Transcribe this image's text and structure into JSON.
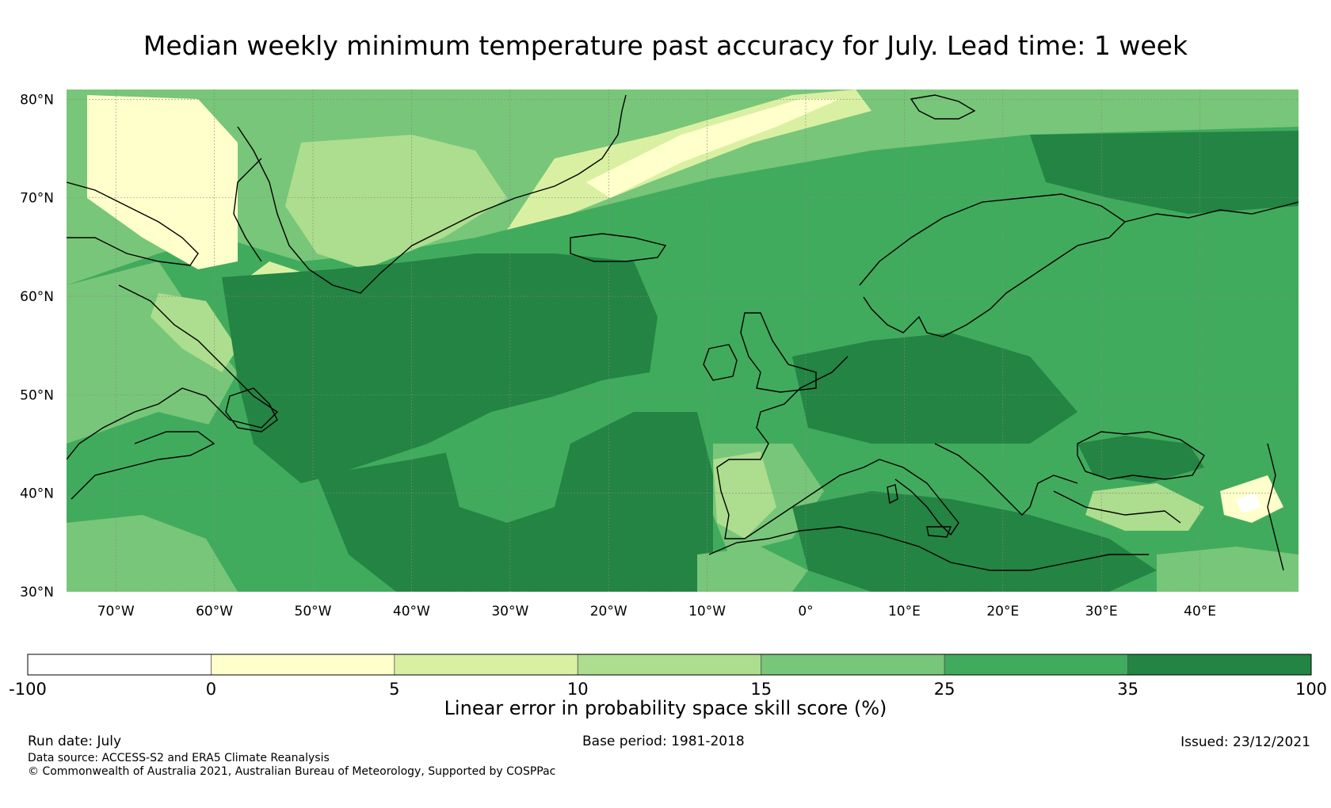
{
  "title": "Median weekly minimum temperature past accuracy for July. Lead time: 1 week",
  "map": {
    "lon_range": [
      -75,
      50
    ],
    "lat_range": [
      30,
      81
    ],
    "lat_ticks": [
      {
        "value": 80,
        "label": "80°N"
      },
      {
        "value": 70,
        "label": "70°N"
      },
      {
        "value": 60,
        "label": "60°N"
      },
      {
        "value": 50,
        "label": "50°N"
      },
      {
        "value": 40,
        "label": "40°N"
      },
      {
        "value": 30,
        "label": "30°N"
      }
    ],
    "lon_ticks": [
      {
        "value": -70,
        "label": "70°W"
      },
      {
        "value": -60,
        "label": "60°W"
      },
      {
        "value": -50,
        "label": "50°W"
      },
      {
        "value": -40,
        "label": "40°W"
      },
      {
        "value": -30,
        "label": "30°W"
      },
      {
        "value": -20,
        "label": "20°W"
      },
      {
        "value": -10,
        "label": "10°W"
      },
      {
        "value": 0,
        "label": "0°"
      },
      {
        "value": 10,
        "label": "10°E"
      },
      {
        "value": 20,
        "label": "20°E"
      },
      {
        "value": 30,
        "label": "30°E"
      },
      {
        "value": 40,
        "label": "40°E"
      }
    ],
    "coastline_color": "#000000",
    "gridline_color": "#888888"
  },
  "colorbar": {
    "boundaries": [
      -100,
      0,
      5,
      10,
      15,
      25,
      35,
      100
    ],
    "tick_labels": [
      "-100",
      "0",
      "5",
      "10",
      "15",
      "25",
      "35",
      "100"
    ],
    "colors": [
      "#ffffff",
      "#ffffcc",
      "#d9f0a3",
      "#addd8e",
      "#78c679",
      "#41ab5d",
      "#238443"
    ],
    "label": "Linear error in probability space skill score (%)"
  },
  "footer": {
    "run_date": "Run date: July",
    "base_period": "Base period: 1981-2018",
    "issued": "Issued: 23/12/2021",
    "data_source": "Data source: ACCESS-S2 and ERA5 Climate Reanalysis",
    "copyright": "© Commonwealth of Australia 2021, Australian Bureau of Meteorology, Supported by COSPPac"
  }
}
